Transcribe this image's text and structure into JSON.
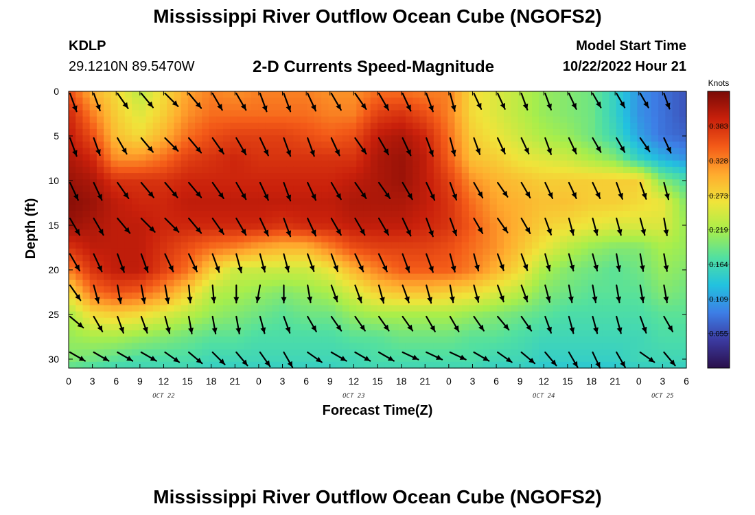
{
  "header": {
    "title": "Mississippi River Outflow Ocean Cube (NGOFS2)",
    "station_id": "KDLP",
    "station_coords": "29.1210N  89.5470W",
    "subtitle": "2-D Currents Speed-Magnitude",
    "model_start_label": "Model Start Time",
    "model_start_value": "10/22/2022 Hour 21"
  },
  "footer": {
    "title": "Mississippi River Outflow Ocean Cube (NGOFS2)"
  },
  "chart_data": {
    "type": "heatmap",
    "xlabel": "Forecast Time(Z)",
    "ylabel": "Depth (ft)",
    "x_range_hours": [
      0,
      78
    ],
    "y_range_ft": [
      0,
      31
    ],
    "x_ticks": [
      "0",
      "3",
      "6",
      "9",
      "12",
      "15",
      "18",
      "21",
      "0",
      "3",
      "6",
      "9",
      "12",
      "15",
      "18",
      "21",
      "0",
      "3",
      "6",
      "9",
      "12",
      "15",
      "18",
      "21",
      "0",
      "3",
      "6"
    ],
    "y_ticks": [
      "0",
      "5",
      "10",
      "15",
      "20",
      "25",
      "30"
    ],
    "y_tick_values": [
      0,
      5,
      10,
      15,
      20,
      25,
      30
    ],
    "day_labels": [
      {
        "label": "OCT 22",
        "hour": 12
      },
      {
        "label": "OCT 23",
        "hour": 36
      },
      {
        "label": "OCT 24",
        "hour": 60
      },
      {
        "label": "OCT 25",
        "hour": 75
      }
    ],
    "colorbar": {
      "title": "Knots",
      "range": [
        0,
        0.438
      ],
      "ticks": [
        "0.383",
        "0.328",
        "0.273",
        "0.219",
        "0.164",
        "0.109",
        "0.055"
      ],
      "tick_values": [
        0.383,
        0.328,
        0.273,
        0.219,
        0.164,
        0.109,
        0.055
      ],
      "colors": [
        "#2a0f4a",
        "#3b3aa0",
        "#3d7ee6",
        "#22c2df",
        "#52e0a0",
        "#a9ee4a",
        "#f0e43a",
        "#ffab2e",
        "#f45b18",
        "#c9200b",
        "#7a0a06"
      ]
    },
    "anchor_hours": [
      0,
      3,
      6,
      9,
      12,
      15,
      18,
      21,
      24,
      27,
      30,
      33,
      36,
      39,
      42,
      45,
      48,
      51,
      54,
      57,
      60,
      63,
      66,
      69,
      72,
      75,
      78
    ],
    "anchor_depths_ft": [
      0,
      2.5,
      5,
      7.5,
      10,
      12.5,
      15,
      17.5,
      20,
      22.5,
      25,
      27.5,
      30,
      31
    ],
    "speed_knots_grid": [
      [
        0.36,
        0.3,
        0.27,
        0.23,
        0.27,
        0.31,
        0.33,
        0.32,
        0.33,
        0.33,
        0.33,
        0.32,
        0.32,
        0.34,
        0.34,
        0.33,
        0.33,
        0.27,
        0.25,
        0.23,
        0.21,
        0.2,
        0.19,
        0.15,
        0.1,
        0.08,
        0.06
      ],
      [
        0.39,
        0.33,
        0.28,
        0.25,
        0.28,
        0.32,
        0.34,
        0.34,
        0.34,
        0.34,
        0.34,
        0.33,
        0.33,
        0.37,
        0.38,
        0.36,
        0.33,
        0.27,
        0.25,
        0.23,
        0.21,
        0.2,
        0.19,
        0.15,
        0.1,
        0.08,
        0.06
      ],
      [
        0.4,
        0.36,
        0.29,
        0.27,
        0.3,
        0.34,
        0.36,
        0.37,
        0.37,
        0.37,
        0.36,
        0.35,
        0.36,
        0.4,
        0.41,
        0.39,
        0.34,
        0.28,
        0.26,
        0.24,
        0.22,
        0.21,
        0.19,
        0.16,
        0.11,
        0.08,
        0.07
      ],
      [
        0.41,
        0.39,
        0.32,
        0.32,
        0.34,
        0.37,
        0.38,
        0.39,
        0.38,
        0.38,
        0.38,
        0.38,
        0.38,
        0.41,
        0.42,
        0.4,
        0.35,
        0.29,
        0.28,
        0.26,
        0.25,
        0.24,
        0.22,
        0.2,
        0.15,
        0.12,
        0.1
      ],
      [
        0.42,
        0.41,
        0.38,
        0.38,
        0.38,
        0.39,
        0.39,
        0.39,
        0.39,
        0.39,
        0.39,
        0.39,
        0.4,
        0.41,
        0.42,
        0.4,
        0.37,
        0.32,
        0.3,
        0.29,
        0.28,
        0.28,
        0.28,
        0.28,
        0.28,
        0.2,
        0.17
      ],
      [
        0.43,
        0.42,
        0.4,
        0.39,
        0.39,
        0.4,
        0.4,
        0.4,
        0.4,
        0.4,
        0.4,
        0.4,
        0.41,
        0.41,
        0.41,
        0.4,
        0.38,
        0.34,
        0.31,
        0.3,
        0.29,
        0.29,
        0.28,
        0.28,
        0.27,
        0.26,
        0.2
      ],
      [
        0.42,
        0.41,
        0.4,
        0.4,
        0.39,
        0.39,
        0.39,
        0.39,
        0.39,
        0.38,
        0.39,
        0.39,
        0.4,
        0.4,
        0.4,
        0.39,
        0.38,
        0.35,
        0.32,
        0.3,
        0.28,
        0.27,
        0.26,
        0.25,
        0.25,
        0.25,
        0.21
      ],
      [
        0.38,
        0.4,
        0.4,
        0.4,
        0.38,
        0.36,
        0.34,
        0.33,
        0.31,
        0.3,
        0.3,
        0.33,
        0.36,
        0.37,
        0.37,
        0.37,
        0.36,
        0.34,
        0.32,
        0.29,
        0.26,
        0.23,
        0.21,
        0.2,
        0.2,
        0.22,
        0.21
      ],
      [
        0.33,
        0.38,
        0.4,
        0.4,
        0.37,
        0.34,
        0.28,
        0.24,
        0.24,
        0.24,
        0.24,
        0.26,
        0.3,
        0.33,
        0.35,
        0.35,
        0.35,
        0.33,
        0.3,
        0.27,
        0.22,
        0.2,
        0.19,
        0.18,
        0.19,
        0.21,
        0.2
      ],
      [
        0.27,
        0.34,
        0.36,
        0.35,
        0.32,
        0.28,
        0.23,
        0.22,
        0.21,
        0.2,
        0.21,
        0.22,
        0.25,
        0.28,
        0.29,
        0.29,
        0.28,
        0.27,
        0.25,
        0.23,
        0.2,
        0.19,
        0.18,
        0.18,
        0.18,
        0.2,
        0.19
      ],
      [
        0.22,
        0.27,
        0.28,
        0.27,
        0.25,
        0.23,
        0.21,
        0.2,
        0.19,
        0.18,
        0.19,
        0.19,
        0.21,
        0.22,
        0.22,
        0.22,
        0.22,
        0.21,
        0.2,
        0.19,
        0.18,
        0.17,
        0.17,
        0.17,
        0.17,
        0.18,
        0.18
      ],
      [
        0.21,
        0.22,
        0.22,
        0.21,
        0.2,
        0.19,
        0.18,
        0.18,
        0.17,
        0.17,
        0.17,
        0.17,
        0.18,
        0.18,
        0.19,
        0.19,
        0.19,
        0.18,
        0.18,
        0.17,
        0.16,
        0.16,
        0.16,
        0.16,
        0.16,
        0.17,
        0.17
      ],
      [
        0.2,
        0.19,
        0.18,
        0.17,
        0.17,
        0.17,
        0.16,
        0.16,
        0.16,
        0.16,
        0.16,
        0.16,
        0.16,
        0.17,
        0.17,
        0.17,
        0.17,
        0.17,
        0.16,
        0.16,
        0.15,
        0.15,
        0.15,
        0.15,
        0.16,
        0.16,
        0.16
      ],
      [
        0.18,
        0.17,
        0.16,
        0.16,
        0.16,
        0.16,
        0.15,
        0.15,
        0.15,
        0.15,
        0.15,
        0.15,
        0.16,
        0.16,
        0.16,
        0.16,
        0.16,
        0.16,
        0.15,
        0.15,
        0.14,
        0.14,
        0.14,
        0.14,
        0.15,
        0.15,
        0.15
      ]
    ],
    "vectors": {
      "hours": [
        0,
        3,
        6,
        9,
        12,
        15,
        18,
        21,
        24,
        27,
        30,
        33,
        36,
        39,
        42,
        45,
        48,
        51,
        54,
        57,
        60,
        63,
        66,
        69,
        72,
        75
      ],
      "depths_ft": [
        0,
        5,
        10,
        14,
        18,
        21.5,
        25,
        29
      ],
      "direction_deg_from_north_cw": [
        [
          160,
          160,
          145,
          140,
          135,
          140,
          150,
          150,
          160,
          160,
          155,
          150,
          145,
          150,
          155,
          160,
          165,
          155,
          155,
          160,
          160,
          155,
          150,
          150,
          150,
          160
        ],
        [
          160,
          160,
          150,
          140,
          135,
          140,
          145,
          150,
          155,
          160,
          160,
          155,
          145,
          150,
          155,
          160,
          165,
          160,
          155,
          155,
          160,
          155,
          150,
          150,
          145,
          155
        ],
        [
          155,
          155,
          145,
          140,
          140,
          140,
          145,
          150,
          155,
          160,
          155,
          150,
          145,
          145,
          150,
          155,
          160,
          150,
          145,
          150,
          155,
          155,
          155,
          160,
          160,
          165
        ],
        [
          150,
          150,
          140,
          135,
          135,
          140,
          145,
          150,
          155,
          160,
          155,
          150,
          150,
          150,
          155,
          160,
          160,
          150,
          145,
          150,
          160,
          165,
          165,
          165,
          165,
          170
        ],
        [
          150,
          155,
          160,
          160,
          155,
          155,
          160,
          165,
          165,
          165,
          160,
          160,
          155,
          155,
          160,
          160,
          165,
          165,
          160,
          160,
          165,
          165,
          165,
          170,
          170,
          170
        ],
        [
          145,
          165,
          170,
          170,
          170,
          175,
          175,
          180,
          190,
          180,
          170,
          160,
          160,
          165,
          160,
          165,
          170,
          165,
          160,
          160,
          165,
          170,
          170,
          170,
          170,
          170
        ],
        [
          130,
          150,
          160,
          160,
          165,
          170,
          170,
          170,
          165,
          160,
          150,
          145,
          145,
          145,
          145,
          150,
          150,
          145,
          140,
          145,
          160,
          165,
          165,
          165,
          160,
          150
        ],
        [
          120,
          120,
          120,
          120,
          125,
          130,
          135,
          140,
          145,
          150,
          125,
          120,
          120,
          120,
          115,
          115,
          115,
          120,
          125,
          130,
          140,
          150,
          155,
          150,
          125,
          140
        ]
      ],
      "relative_length": [
        [
          1.0,
          0.95,
          0.95,
          0.95,
          0.95,
          1.0,
          1.0,
          1.0,
          1.0,
          1.0,
          1.0,
          1.0,
          1.0,
          1.0,
          1.0,
          1.0,
          0.95,
          0.9,
          0.9,
          0.9,
          0.9,
          0.9,
          0.85,
          0.85,
          0.85,
          0.85
        ],
        [
          1.0,
          0.95,
          0.95,
          0.95,
          0.95,
          1.0,
          1.0,
          1.0,
          1.0,
          1.0,
          1.0,
          1.0,
          1.0,
          1.0,
          1.0,
          1.0,
          0.95,
          0.9,
          0.9,
          0.9,
          0.9,
          0.9,
          0.85,
          0.85,
          0.85,
          0.85
        ],
        [
          1.0,
          1.0,
          1.0,
          1.0,
          1.0,
          1.0,
          1.0,
          1.0,
          1.0,
          1.0,
          1.0,
          1.0,
          1.0,
          1.0,
          1.0,
          1.0,
          0.95,
          0.9,
          0.9,
          0.9,
          0.9,
          0.9,
          0.9,
          0.9,
          0.9,
          0.9
        ],
        [
          1.0,
          1.0,
          1.0,
          1.0,
          1.0,
          1.0,
          1.0,
          1.0,
          1.0,
          1.0,
          1.0,
          1.0,
          1.0,
          1.0,
          1.0,
          1.0,
          0.95,
          0.9,
          0.9,
          0.9,
          0.9,
          0.9,
          0.9,
          0.9,
          0.9,
          0.9
        ],
        [
          1.0,
          1.0,
          1.0,
          1.0,
          1.0,
          1.0,
          1.0,
          1.0,
          0.95,
          0.95,
          0.95,
          0.95,
          1.0,
          1.0,
          1.0,
          1.0,
          0.95,
          0.9,
          0.9,
          0.9,
          0.9,
          0.9,
          0.9,
          0.9,
          0.9,
          0.9
        ],
        [
          0.95,
          0.95,
          0.95,
          0.95,
          0.95,
          0.9,
          0.9,
          0.9,
          0.9,
          0.9,
          0.9,
          0.9,
          0.95,
          0.95,
          0.95,
          0.95,
          0.9,
          0.9,
          0.9,
          0.9,
          0.9,
          0.9,
          0.9,
          0.9,
          0.9,
          0.9
        ],
        [
          0.9,
          0.9,
          0.9,
          0.9,
          0.9,
          0.9,
          0.9,
          0.9,
          0.9,
          0.9,
          0.9,
          0.9,
          0.9,
          0.9,
          0.9,
          0.9,
          0.9,
          0.9,
          0.9,
          0.9,
          0.9,
          0.9,
          0.9,
          0.9,
          0.9,
          0.9
        ],
        [
          0.9,
          0.9,
          0.9,
          0.9,
          0.9,
          0.9,
          0.9,
          0.9,
          0.9,
          0.9,
          0.9,
          0.9,
          0.9,
          0.9,
          0.9,
          0.9,
          0.9,
          0.9,
          0.9,
          0.9,
          0.9,
          0.9,
          0.9,
          0.9,
          0.9,
          0.9
        ]
      ]
    }
  }
}
